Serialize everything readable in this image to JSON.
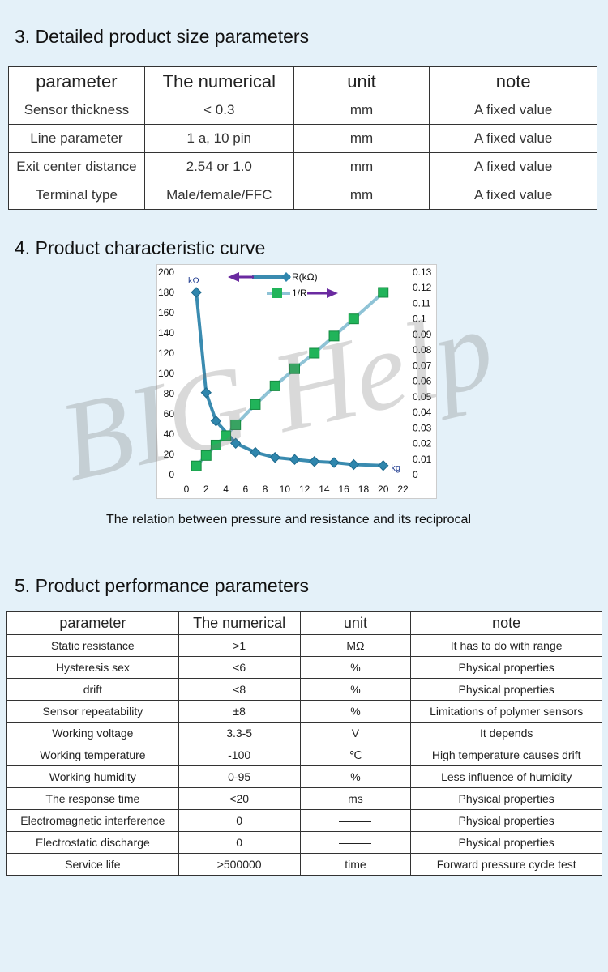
{
  "section3": {
    "title": "3. Detailed product size parameters",
    "headers": [
      "parameter",
      "The numerical",
      "unit",
      "note"
    ],
    "rows": [
      [
        "Sensor thickness",
        "< 0.3",
        "mm",
        "A fixed value"
      ],
      [
        "Line parameter",
        "1 a, 10 pin",
        "mm",
        "A fixed value"
      ],
      [
        "Exit center distance",
        "2.54 or 1.0",
        "mm",
        "A fixed value"
      ],
      [
        "Terminal type",
        "Male/female/FFC",
        "mm",
        "A fixed value"
      ]
    ]
  },
  "section4": {
    "title": "4. Product characteristic curve",
    "caption": "The relation between pressure and resistance and its reciprocal"
  },
  "watermark": "BIG Help",
  "chart_data": {
    "type": "line",
    "title": "",
    "xlabel": "kg",
    "ylabel": "kΩ",
    "xlim": [
      0,
      22
    ],
    "ylim": [
      0,
      200
    ],
    "y2lim": [
      0,
      0.13
    ],
    "x_ticks": [
      0,
      2,
      4,
      6,
      8,
      10,
      12,
      14,
      16,
      18,
      20,
      22
    ],
    "y_ticks": [
      0,
      20,
      40,
      60,
      80,
      100,
      120,
      140,
      160,
      180,
      200
    ],
    "y2_ticks": [
      0,
      0.01,
      0.02,
      0.03,
      0.04,
      0.05,
      0.06,
      0.07,
      0.08,
      0.09,
      0.1,
      0.11,
      0.12,
      0.13
    ],
    "grid": false,
    "legend": "top-center",
    "series": [
      {
        "name": "R(kΩ)",
        "axis": "left",
        "color": "#3a8bb0",
        "marker": "diamond",
        "x": [
          1,
          2,
          3,
          5,
          7,
          9,
          11,
          13,
          15,
          17,
          20
        ],
        "y": [
          180,
          81,
          53,
          31,
          22,
          17,
          15,
          13,
          12,
          10,
          9
        ]
      },
      {
        "name": "1/R",
        "axis": "right",
        "color": "#8fc3d6",
        "marker": "square",
        "x": [
          1,
          2,
          3,
          4,
          5,
          7,
          9,
          11,
          13,
          15,
          17,
          20
        ],
        "y": [
          0.0056,
          0.0123,
          0.019,
          0.025,
          0.032,
          0.045,
          0.057,
          0.068,
          0.078,
          0.089,
          0.1,
          0.117
        ]
      }
    ]
  },
  "section5": {
    "title": "5. Product performance parameters",
    "headers": [
      "parameter",
      "The numerical",
      "unit",
      "note"
    ],
    "rows": [
      [
        "Static resistance",
        ">1",
        "MΩ",
        "It has to do with range"
      ],
      [
        "Hysteresis sex",
        "<6",
        "%",
        "Physical properties"
      ],
      [
        "drift",
        "<8",
        "%",
        "Physical properties"
      ],
      [
        "Sensor repeatability",
        "±8",
        "%",
        "Limitations of polymer sensors"
      ],
      [
        "Working voltage",
        "3.3-5",
        "V",
        "It depends"
      ],
      [
        "Working temperature",
        "-100",
        "℃",
        "High temperature causes drift"
      ],
      [
        "Working humidity",
        "0-95",
        "%",
        "Less influence of humidity"
      ],
      [
        "The response time",
        "<20",
        "ms",
        "Physical properties"
      ],
      [
        "Electromagnetic interference",
        "0",
        "",
        "Physical properties"
      ],
      [
        "Electrostatic discharge",
        "0",
        "",
        "Physical properties"
      ],
      [
        "Service life",
        ">500000",
        "time",
        "Forward pressure cycle test"
      ]
    ]
  }
}
